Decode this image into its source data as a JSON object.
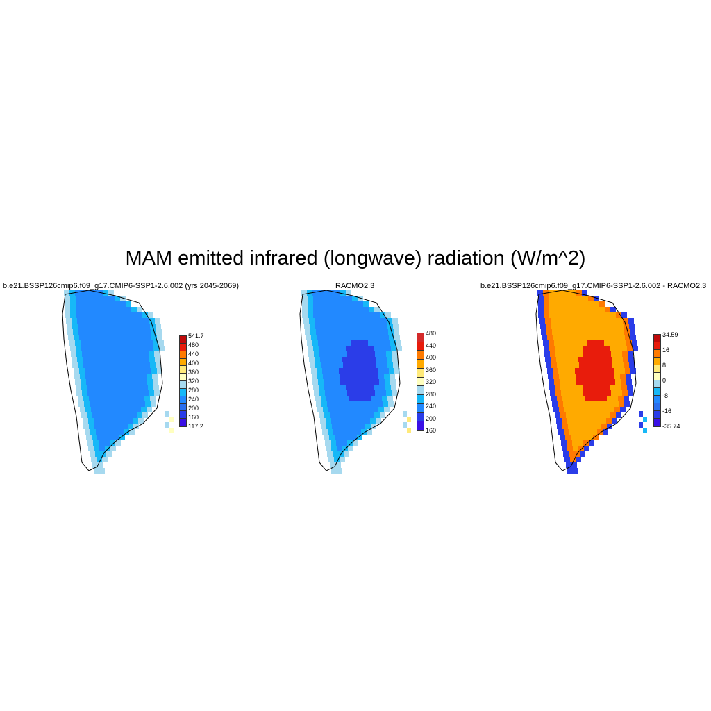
{
  "title": "MAM emitted infrared (longwave) radiation (W/m^2)",
  "panels": [
    {
      "id": "model",
      "title": "b.e21.BSSP126cmip6.f09_g17.CMIP6-SSP1-2.6.002 (yrs 2045-2069)",
      "colors": [
        "#3a10e6",
        "#2b3de8",
        "#2a6fee",
        "#2289ff",
        "#17b8f7",
        "#a6d9ef",
        "#ffffbf",
        "#ffea7a",
        "#ffaa00",
        "#ff7a00",
        "#e81c0c",
        "#c00a0a"
      ],
      "labels": [
        "541.7",
        "480",
        "440",
        "400",
        "360",
        "320",
        "280",
        "240",
        "200",
        "160",
        "117.2"
      ],
      "interior_color": "#2289ff",
      "edge_color": "#17b8f7",
      "center_color": "#2289ff",
      "fringe_color": "#a6d9ef",
      "coast_color": "#ffffbf"
    },
    {
      "id": "racmo",
      "title": "RACMO2.3",
      "colors": [
        "#3a10e6",
        "#2b3de8",
        "#2289ff",
        "#17b8f7",
        "#a6d9ef",
        "#ffffbf",
        "#ffea7a",
        "#ffaa00",
        "#ff7a00",
        "#e81c0c",
        "#d42a2a"
      ],
      "labels": [
        "480",
        "440",
        "400",
        "360",
        "320",
        "280",
        "240",
        "200",
        "160"
      ],
      "interior_color": "#2289ff",
      "edge_color": "#17b8f7",
      "center_color": "#2b3de8",
      "fringe_color": "#a6d9ef",
      "coast_color": "#ffea7a"
    },
    {
      "id": "diff",
      "title": "b.e21.BSSP126cmip6.f09_g17.CMIP6-SSP1-2.6.002 - RACMO2.3",
      "colors": [
        "#3a10e6",
        "#2b3de8",
        "#2a6fee",
        "#2289ff",
        "#17b8f7",
        "#a6d9ef",
        "#ffffbf",
        "#ffea7a",
        "#ffaa00",
        "#ff7a00",
        "#e81c0c",
        "#c00a0a"
      ],
      "labels": [
        "34.59",
        "16",
        "8",
        "0",
        "-8",
        "-16",
        "-35.74"
      ],
      "interior_color": "#ffaa00",
      "edge_color": "#ff7a00",
      "center_color": "#e81c0c",
      "fringe_color": "#2b3de8",
      "coast_color": "#17b8f7"
    }
  ]
}
